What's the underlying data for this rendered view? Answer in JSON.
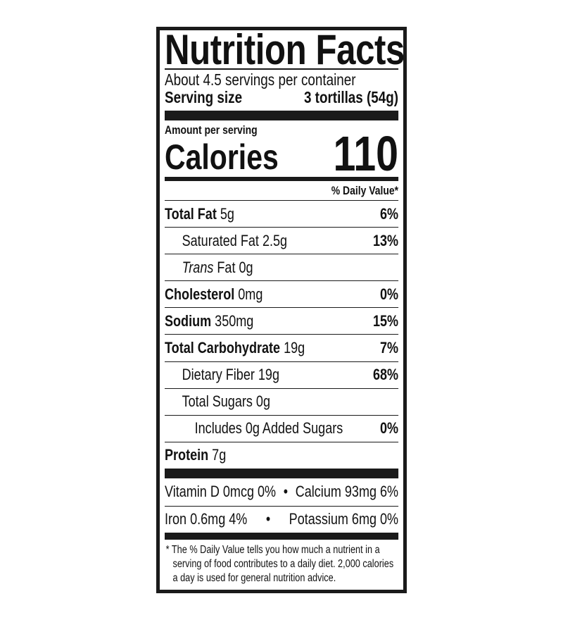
{
  "title": "Nutrition Facts",
  "servings_per_container": "About 4.5 servings per container",
  "serving_size_label": "Serving size",
  "serving_size_value": "3 tortillas (54g)",
  "amount_per_serving": "Amount per serving",
  "calories_label": "Calories",
  "calories_value": "110",
  "daily_value_header": "% Daily Value*",
  "nutrients": [
    {
      "name": "Total Fat",
      "amount": "5g",
      "dv": "6%",
      "bold": true,
      "indent": 0
    },
    {
      "name": "Saturated Fat",
      "amount": "2.5g",
      "dv": "13%",
      "bold": false,
      "indent": 1
    },
    {
      "name": "Trans",
      "name_suffix": "Fat",
      "amount": "0g",
      "dv": "",
      "bold": false,
      "indent": 1
    },
    {
      "name": "Cholesterol",
      "amount": "0mg",
      "dv": "0%",
      "bold": true,
      "indent": 0
    },
    {
      "name": "Sodium",
      "amount": "350mg",
      "dv": "15%",
      "bold": true,
      "indent": 0
    },
    {
      "name": "Total Carbohydrate",
      "amount": "19g",
      "dv": "7%",
      "bold": true,
      "indent": 0
    },
    {
      "name": "Dietary Fiber",
      "amount": "19g",
      "dv": "68%",
      "bold": false,
      "indent": 1
    },
    {
      "name": "Total Sugars",
      "amount": "0g",
      "dv": "",
      "bold": false,
      "indent": 1
    },
    {
      "name": "Includes 0g Added Sugars",
      "amount": "",
      "dv": "0%",
      "bold": false,
      "indent": 2
    },
    {
      "name": "Protein",
      "amount": "7g",
      "dv": "",
      "bold": true,
      "indent": 0
    }
  ],
  "vitamins": {
    "vitamin_d": "Vitamin D 0mcg 0%",
    "calcium": "Calcium 93mg 6%",
    "iron": "Iron 0.6mg 4%",
    "potassium": "Potassium 6mg 0%",
    "separator": "•"
  },
  "footnote": "* The % Daily Value tells you how much a nutrient in a serving of food contributes to a daily diet. 2,000 calories a day is used for general nutrition advice."
}
